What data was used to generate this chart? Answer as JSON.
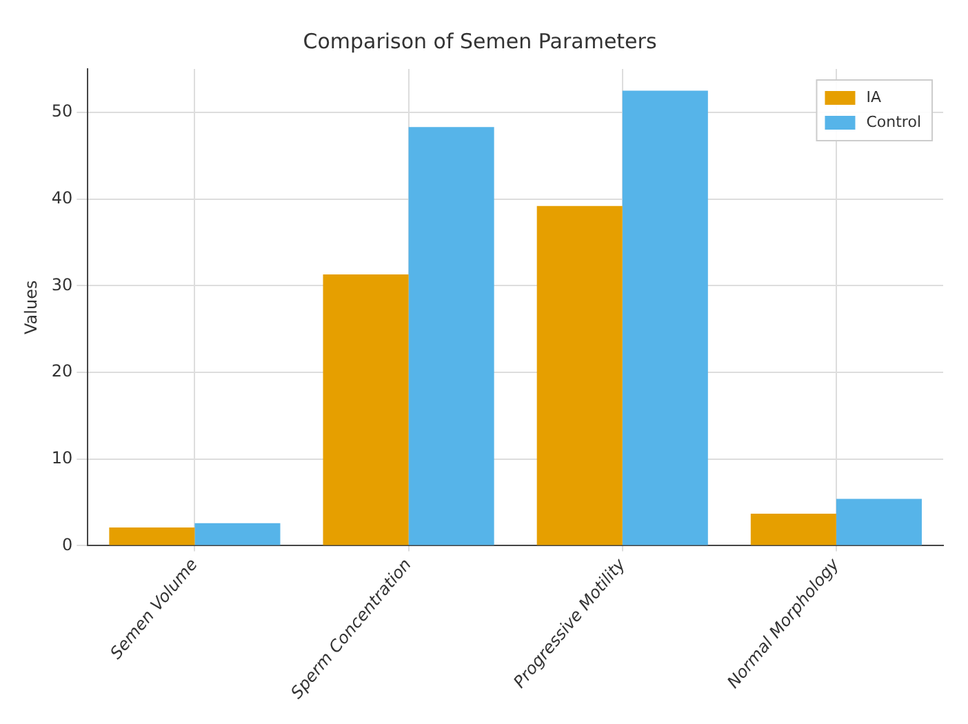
{
  "chart_data": {
    "type": "bar",
    "title": "Comparison of Semen Parameters",
    "ylabel": "Values",
    "categories": [
      "Semen Volume",
      "Sperm Concentration",
      "Progressive Motility",
      "Normal Morphology"
    ],
    "series": [
      {
        "name": "IA",
        "color": "#e69f00",
        "values": [
          2.1,
          31.3,
          39.2,
          3.7
        ]
      },
      {
        "name": "Control",
        "color": "#56b4e9",
        "values": [
          2.6,
          48.3,
          52.5,
          5.4
        ]
      }
    ],
    "ylim": [
      0,
      55
    ],
    "yticks": [
      0,
      10,
      20,
      30,
      40,
      50
    ],
    "grid": true,
    "legend": "top right"
  }
}
